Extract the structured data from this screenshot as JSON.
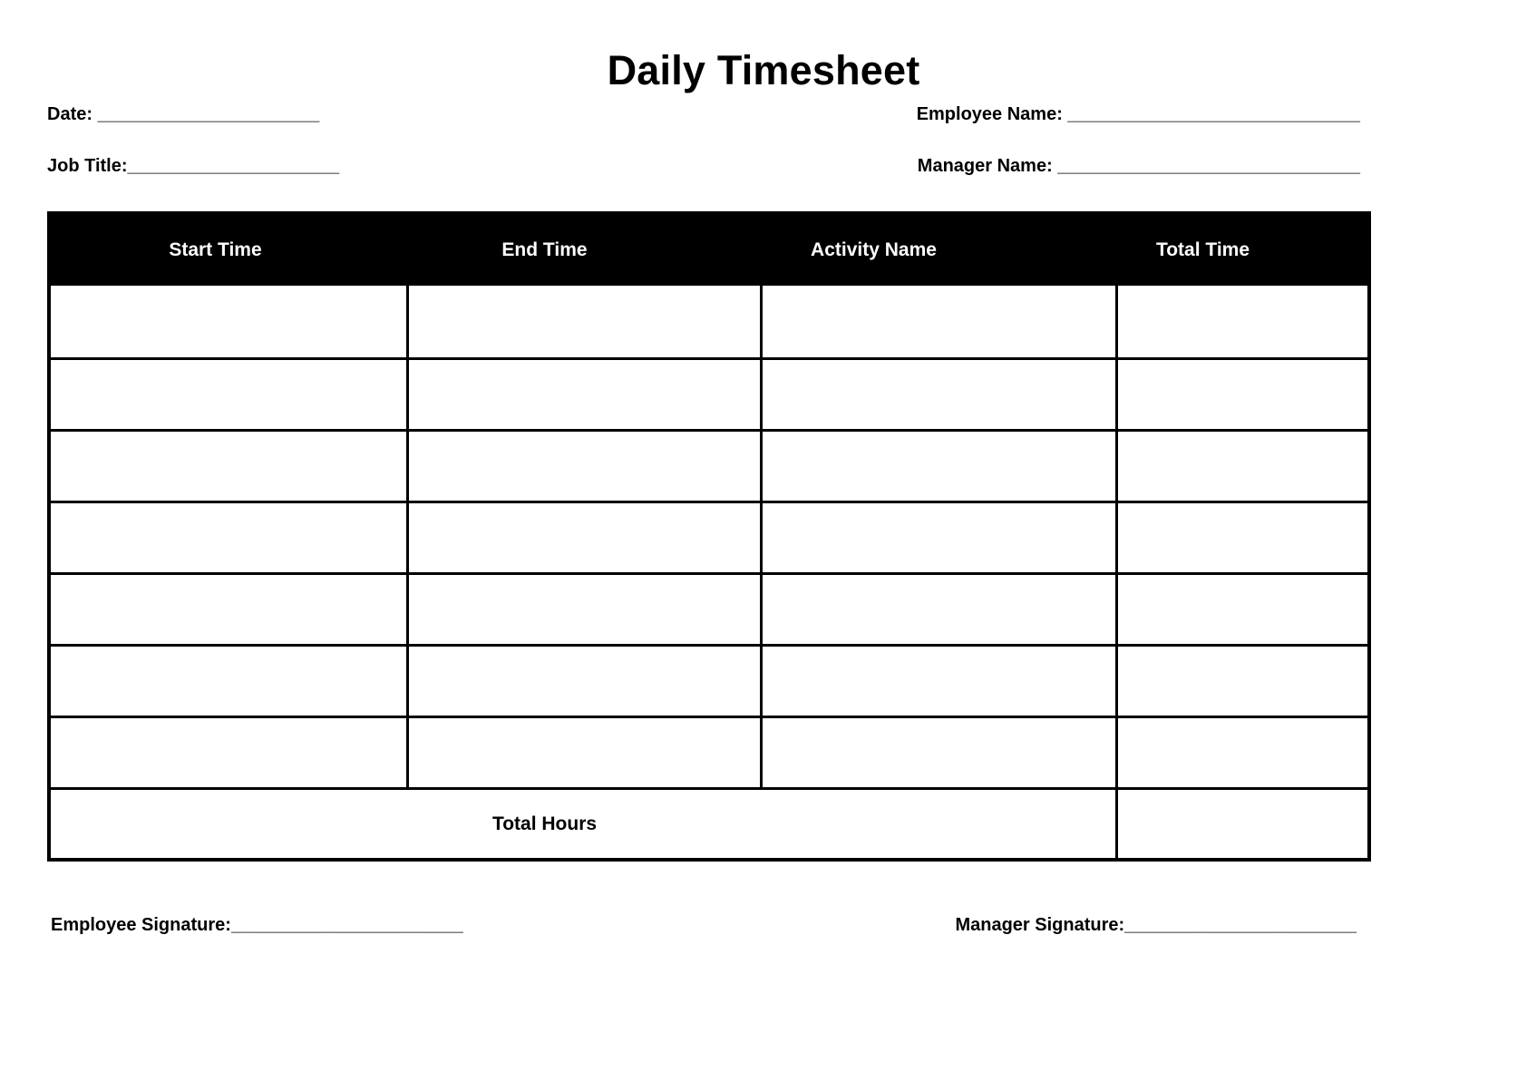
{
  "title": "Daily Timesheet",
  "fields": {
    "date_label": "Date: ",
    "date_line": "______________________",
    "employee_name_label": "Employee Name: ",
    "employee_name_line": "_____________________________",
    "job_title_label": "Job Title:",
    "job_title_line": "_____________________",
    "manager_name_label": "Manager Name: ",
    "manager_name_line": "______________________________"
  },
  "table": {
    "headers": [
      "Start Time",
      "End Time",
      "Activity Name",
      "Total Time"
    ],
    "rows": [
      [
        "",
        "",
        "",
        ""
      ],
      [
        "",
        "",
        "",
        ""
      ],
      [
        "",
        "",
        "",
        ""
      ],
      [
        "",
        "",
        "",
        ""
      ],
      [
        "",
        "",
        "",
        ""
      ],
      [
        "",
        "",
        "",
        ""
      ],
      [
        "",
        "",
        "",
        ""
      ]
    ],
    "total_row": {
      "label": "Total Hours",
      "value": ""
    }
  },
  "signatures": {
    "employee_label": "Employee Signature:",
    "employee_line": "_______________________",
    "manager_label": "Manager Signature:",
    "manager_line": "_______________________"
  },
  "colors": {
    "page_bg": "#ffffff",
    "text": "#000000",
    "table_header_bg": "#000000",
    "table_header_text": "#ffffff",
    "grid_line": "#000000"
  }
}
